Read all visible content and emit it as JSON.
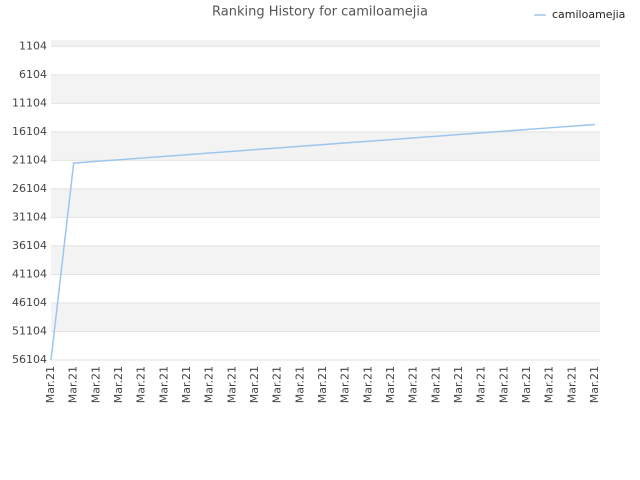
{
  "chart_data": {
    "type": "line",
    "title": "Ranking History for camiloamejia",
    "categories": [
      "Mar.21",
      "Mar.21",
      "Mar.21",
      "Mar.21",
      "Mar.21",
      "Mar.21",
      "Mar.21",
      "Mar.21",
      "Mar.21",
      "Mar.21",
      "Mar.21",
      "Mar.21",
      "Mar.21",
      "Mar.21",
      "Mar.21",
      "Mar.21",
      "Mar.21",
      "Mar.21",
      "Mar.21",
      "Mar.21",
      "Mar.21",
      "Mar.21",
      "Mar.21",
      "Mar.21",
      "Mar.21"
    ],
    "series": [
      {
        "name": "camiloamejia",
        "color": "#9dc6ee",
        "values": [
          56104,
          21582,
          21288,
          20993,
          20699,
          20404,
          20109,
          19815,
          19520,
          19226,
          18931,
          18636,
          18342,
          18047,
          17753,
          17458,
          17163,
          16869,
          16574,
          16280,
          15985,
          15690,
          15396,
          15101,
          14807
        ]
      }
    ],
    "ylim": [
      56104,
      0
    ],
    "yticks": [
      1104,
      6104,
      11104,
      16104,
      21104,
      26104,
      31104,
      36104,
      41104,
      46104,
      51104,
      56104
    ],
    "grid": true,
    "legend": "top-right"
  }
}
